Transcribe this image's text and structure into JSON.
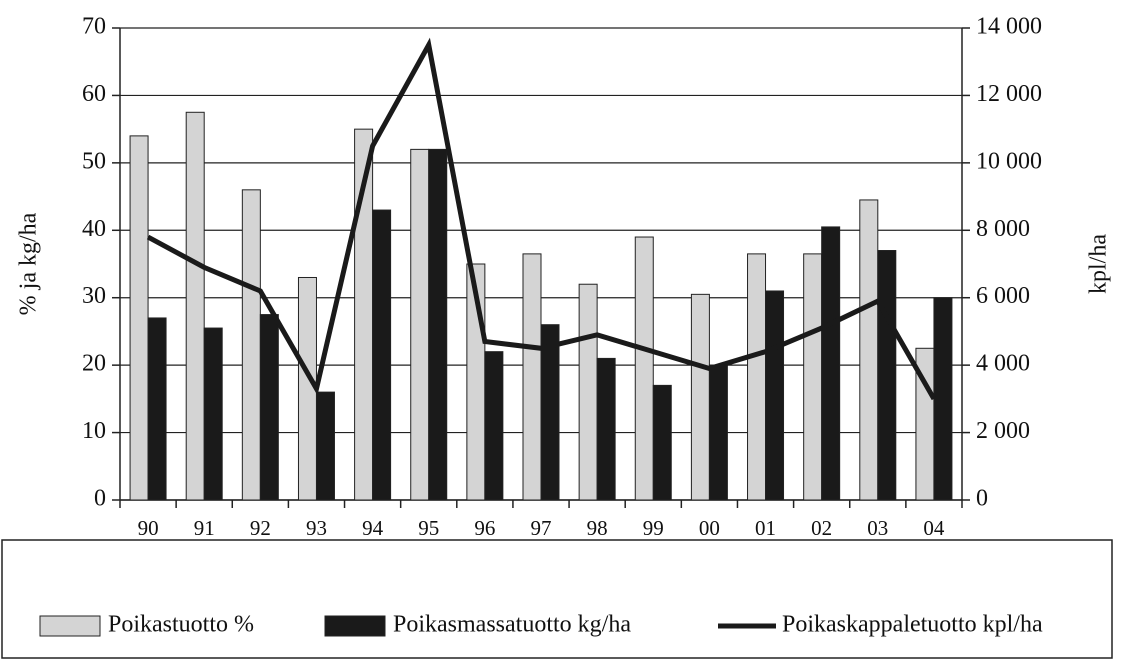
{
  "chart_data": {
    "type": "bar",
    "categories": [
      "90",
      "91",
      "92",
      "93",
      "94",
      "95",
      "96",
      "97",
      "98",
      "99",
      "00",
      "01",
      "02",
      "03",
      "04"
    ],
    "series": [
      {
        "name": "Poikastuotto %",
        "color": "#d4d4d4",
        "values": [
          54,
          57.5,
          46,
          33,
          55,
          52,
          35,
          36.5,
          32,
          39,
          30.5,
          36.5,
          36.5,
          44.5,
          22.5
        ]
      },
      {
        "name": "Poikasmassatuotto kg/ha",
        "color": "#1a1a1a",
        "values": [
          27,
          25.5,
          27.5,
          16,
          43,
          52,
          22,
          26,
          21,
          17,
          20,
          31,
          40.5,
          37,
          30
        ]
      },
      {
        "name": "Poikaskappaletuotto kpl/ha",
        "color": "#1a1a1a",
        "type": "line",
        "axis": "y2",
        "values": [
          7800,
          6900,
          6200,
          3300,
          10500,
          13500,
          4700,
          4500,
          4900,
          4400,
          3900,
          4400,
          5100,
          5900,
          3000
        ]
      }
    ],
    "ylabel": "% ja kg/ha",
    "y2label": "kpl/ha",
    "ylim": [
      0,
      70
    ],
    "yticks": [
      0,
      10,
      20,
      30,
      40,
      50,
      60,
      70
    ],
    "y2lim": [
      0,
      14000
    ],
    "y2ticks": [
      0,
      {
        "value": 2000,
        "label": "2 000"
      },
      {
        "value": 4000,
        "label": "4 000"
      },
      {
        "value": 6000,
        "label": "6 000"
      },
      {
        "value": 8000,
        "label": "8 000"
      },
      {
        "value": 10000,
        "label": "10 000"
      },
      {
        "value": 12000,
        "label": "12 000"
      },
      {
        "value": 14000,
        "label": "14 000"
      }
    ],
    "grid": true
  }
}
